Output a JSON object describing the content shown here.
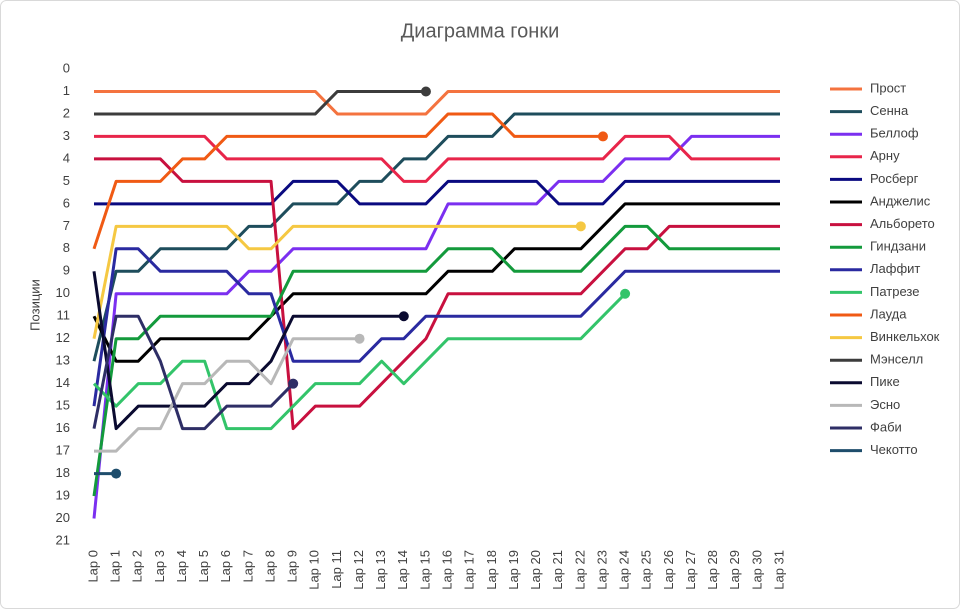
{
  "chart_data": {
    "type": "line",
    "title": "Диаграмма гонки",
    "y_label": "Позиции",
    "categories": [
      "Lap 0",
      "Lap 1",
      "Lap 2",
      "Lap 3",
      "Lap 4",
      "Lap 5",
      "Lap 6",
      "Lap 7",
      "Lap 8",
      "Lap 9",
      "Lap 10",
      "Lap 11",
      "Lap 12",
      "Lap 13",
      "Lap 14",
      "Lap 15",
      "Lap 16",
      "Lap 17",
      "Lap 18",
      "Lap 19",
      "Lap 20",
      "Lap 21",
      "Lap 22",
      "Lap 23",
      "Lap 24",
      "Lap 25",
      "Lap 26",
      "Lap 27",
      "Lap 28",
      "Lap 29",
      "Lap 30",
      "Lap 31"
    ],
    "ylim": [
      21,
      0
    ],
    "yticks": [
      0,
      1,
      2,
      3,
      4,
      5,
      6,
      7,
      8,
      9,
      10,
      11,
      12,
      13,
      14,
      15,
      16,
      17,
      18,
      19,
      20,
      21
    ],
    "legend": "right",
    "series": [
      {
        "name": "Прост",
        "color": "#f4733f",
        "values": [
          1,
          1,
          1,
          1,
          1,
          1,
          1,
          1,
          1,
          1,
          1,
          2,
          2,
          2,
          2,
          2,
          1,
          1,
          1,
          1,
          1,
          1,
          1,
          1,
          1,
          1,
          1,
          1,
          1,
          1,
          1,
          1
        ]
      },
      {
        "name": "Сенна",
        "color": "#1e4d5c",
        "values": [
          13,
          9,
          9,
          8,
          8,
          8,
          8,
          7,
          7,
          6,
          6,
          6,
          5,
          5,
          4,
          4,
          3,
          3,
          3,
          2,
          2,
          2,
          2,
          2,
          2,
          2,
          2,
          2,
          2,
          2,
          2,
          2
        ]
      },
      {
        "name": "Беллоф",
        "color": "#7b2ff0",
        "values": [
          20,
          10,
          10,
          10,
          10,
          10,
          10,
          9,
          9,
          8,
          8,
          8,
          8,
          8,
          8,
          8,
          6,
          6,
          6,
          6,
          6,
          5,
          5,
          5,
          4,
          4,
          4,
          3,
          3,
          3,
          3,
          3
        ]
      },
      {
        "name": "Арну",
        "color": "#e8254a",
        "values": [
          3,
          3,
          3,
          3,
          3,
          3,
          4,
          4,
          4,
          4,
          4,
          4,
          4,
          4,
          5,
          5,
          4,
          4,
          4,
          4,
          4,
          4,
          4,
          4,
          3,
          3,
          3,
          4,
          4,
          4,
          4,
          4
        ]
      },
      {
        "name": "Росберг",
        "color": "#0a0a80",
        "values": [
          6,
          6,
          6,
          6,
          6,
          6,
          6,
          6,
          6,
          5,
          5,
          5,
          6,
          6,
          6,
          6,
          5,
          5,
          5,
          5,
          5,
          6,
          6,
          6,
          5,
          5,
          5,
          5,
          5,
          5,
          5,
          5
        ]
      },
      {
        "name": "Анджелис",
        "color": "#000000",
        "values": [
          11,
          13,
          13,
          12,
          12,
          12,
          12,
          12,
          11,
          10,
          10,
          10,
          10,
          10,
          10,
          10,
          9,
          9,
          9,
          8,
          8,
          8,
          8,
          7,
          6,
          6,
          6,
          6,
          6,
          6,
          6,
          6
        ]
      },
      {
        "name": "Альборето",
        "color": "#c8103f",
        "values": [
          4,
          4,
          4,
          4,
          5,
          5,
          5,
          5,
          5,
          16,
          15,
          15,
          15,
          14,
          13,
          12,
          10,
          10,
          10,
          10,
          10,
          10,
          10,
          9,
          8,
          8,
          7,
          7,
          7,
          7,
          7,
          7
        ]
      },
      {
        "name": "Гиндзани",
        "color": "#139a3c",
        "values": [
          19,
          12,
          12,
          11,
          11,
          11,
          11,
          11,
          11,
          9,
          9,
          9,
          9,
          9,
          9,
          9,
          8,
          8,
          8,
          9,
          9,
          9,
          9,
          8,
          7,
          7,
          8,
          8,
          8,
          8,
          8,
          8
        ]
      },
      {
        "name": "Лаффит",
        "color": "#2a2aa0",
        "values": [
          15,
          8,
          8,
          9,
          9,
          9,
          9,
          10,
          10,
          13,
          13,
          13,
          13,
          12,
          12,
          11,
          11,
          11,
          11,
          11,
          11,
          11,
          11,
          10,
          9,
          9,
          9,
          9,
          9,
          9,
          9,
          9
        ]
      },
      {
        "name": "Патрезе",
        "color": "#33c46a",
        "values": [
          14,
          15,
          14,
          14,
          13,
          13,
          16,
          16,
          16,
          15,
          14,
          14,
          14,
          13,
          14,
          13,
          12,
          12,
          12,
          12,
          12,
          12,
          12,
          11,
          10,
          null,
          null,
          null,
          null,
          null,
          null,
          null
        ]
      },
      {
        "name": "Лауда",
        "color": "#f05a14",
        "values": [
          8,
          5,
          5,
          5,
          4,
          4,
          3,
          3,
          3,
          3,
          3,
          3,
          3,
          3,
          3,
          3,
          2,
          2,
          2,
          3,
          3,
          3,
          3,
          3,
          null,
          null,
          null,
          null,
          null,
          null,
          null,
          null
        ]
      },
      {
        "name": "Винкельхок",
        "color": "#f5c842",
        "values": [
          12,
          7,
          7,
          7,
          7,
          7,
          7,
          8,
          8,
          7,
          7,
          7,
          7,
          7,
          7,
          7,
          7,
          7,
          7,
          7,
          7,
          7,
          7,
          null,
          null,
          null,
          null,
          null,
          null,
          null,
          null,
          null
        ]
      },
      {
        "name": "Мэнселл",
        "color": "#3c3c3c",
        "values": [
          2,
          2,
          2,
          2,
          2,
          2,
          2,
          2,
          2,
          2,
          2,
          1,
          1,
          1,
          1,
          1,
          null,
          null,
          null,
          null,
          null,
          null,
          null,
          null,
          null,
          null,
          null,
          null,
          null,
          null,
          null,
          null
        ]
      },
      {
        "name": "Пике",
        "color": "#0a0a30",
        "values": [
          9,
          16,
          15,
          15,
          15,
          15,
          14,
          14,
          13,
          11,
          11,
          11,
          11,
          11,
          11,
          null,
          null,
          null,
          null,
          null,
          null,
          null,
          null,
          null,
          null,
          null,
          null,
          null,
          null,
          null,
          null,
          null
        ]
      },
      {
        "name": "Эсно",
        "color": "#b8b8b8",
        "values": [
          17,
          17,
          16,
          16,
          14,
          14,
          13,
          13,
          14,
          12,
          12,
          12,
          12,
          null,
          null,
          null,
          null,
          null,
          null,
          null,
          null,
          null,
          null,
          null,
          null,
          null,
          null,
          null,
          null,
          null,
          null,
          null
        ]
      },
      {
        "name": "Фаби",
        "color": "#2e2e66",
        "values": [
          16,
          11,
          11,
          13,
          16,
          16,
          15,
          15,
          15,
          14,
          null,
          null,
          null,
          null,
          null,
          null,
          null,
          null,
          null,
          null,
          null,
          null,
          null,
          null,
          null,
          null,
          null,
          null,
          null,
          null,
          null,
          null
        ]
      },
      {
        "name": "Чекотто",
        "color": "#1e4d6c",
        "values": [
          18,
          18,
          null,
          null,
          null,
          null,
          null,
          null,
          null,
          null,
          null,
          null,
          null,
          null,
          null,
          null,
          null,
          null,
          null,
          null,
          null,
          null,
          null,
          null,
          null,
          null,
          null,
          null,
          null,
          null,
          null,
          null
        ]
      }
    ]
  }
}
